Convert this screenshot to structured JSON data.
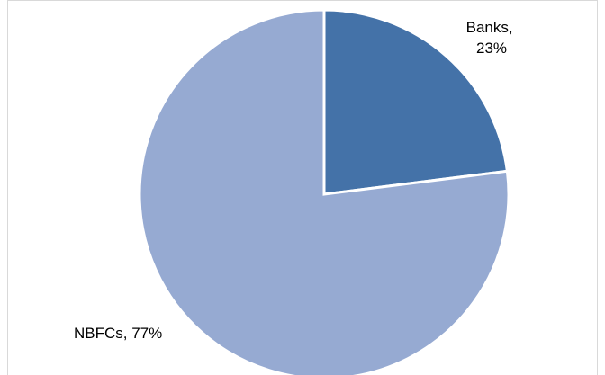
{
  "chart_data": {
    "type": "pie",
    "title": "",
    "slices": [
      {
        "label_line1": "Banks,",
        "label_line2": "23%",
        "category": "Banks",
        "value": 23,
        "color": "#4472a8"
      },
      {
        "label_line1": "NBFCs, 77%",
        "label_line2": "",
        "category": "NBFCs",
        "value": 77,
        "color": "#96aad2"
      }
    ],
    "legend": "none"
  }
}
